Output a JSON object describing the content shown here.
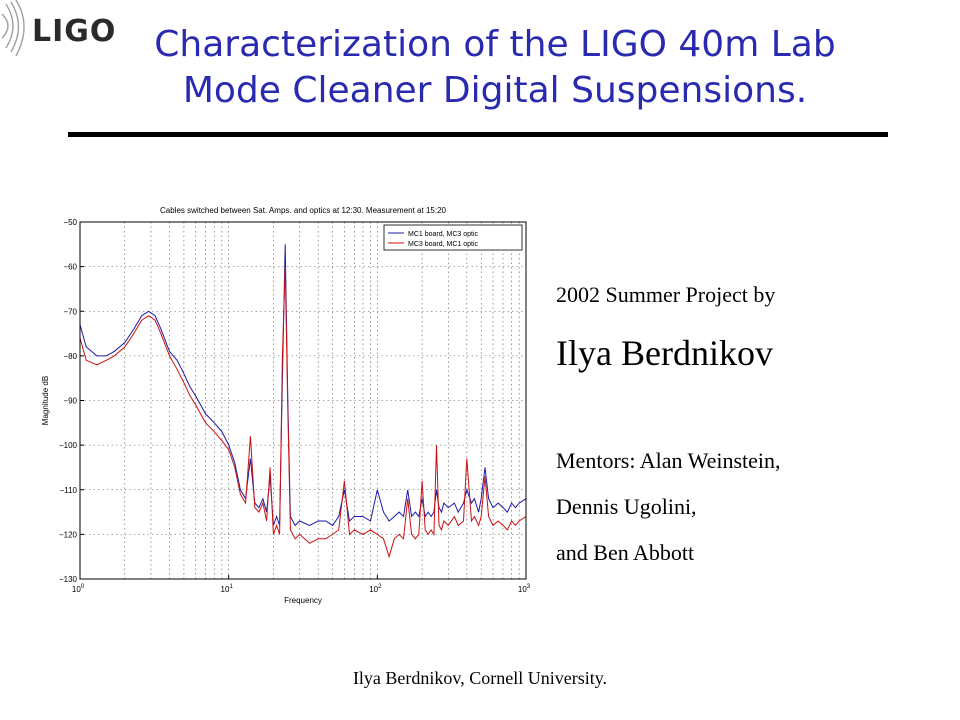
{
  "slide": {
    "logo_text": "LIGO",
    "title_line1": "Characterization of the LIGO 40m Lab",
    "title_line2": "Mode Cleaner Digital Suspensions.",
    "project_line": "2002 Summer Project by",
    "author": "Ilya Berdnikov",
    "mentors_line1": "Mentors: Alan Weinstein,",
    "mentors_line2": "Dennis Ugolini,",
    "mentors_line3": "and Ben Abbott",
    "footer": "Ilya Berdnikov, Cornell University."
  },
  "colors": {
    "title": "#2a2ab0",
    "series1": "#1a1aa8",
    "series2": "#cc1111"
  },
  "chart_data": {
    "type": "line",
    "title": "Cables switched between Sat. Amps. and optics at 12:30. Measurement at 15:20",
    "xlabel": "Frequency",
    "ylabel": "Magnitude dB",
    "xscale": "log",
    "xlim": [
      1,
      1000
    ],
    "ylim": [
      -130,
      -50
    ],
    "yticks": [
      -50,
      -60,
      -70,
      -80,
      -90,
      -100,
      -110,
      -120,
      -130
    ],
    "xticks": [
      {
        "base": "10",
        "exp": "0",
        "value": 1
      },
      {
        "base": "10",
        "exp": "1",
        "value": 10
      },
      {
        "base": "10",
        "exp": "2",
        "value": 100
      },
      {
        "base": "10",
        "exp": "3",
        "value": 1000
      }
    ],
    "grid": true,
    "legend_position": "top-right",
    "series": [
      {
        "name": "MC1 board, MC3 optic",
        "color": "#1a1aa8",
        "x": [
          1,
          1.1,
          1.3,
          1.5,
          1.7,
          2,
          2.3,
          2.6,
          2.9,
          3.2,
          3.5,
          4,
          4.5,
          5,
          5.5,
          6,
          7,
          8,
          9,
          10,
          11,
          12,
          13,
          14,
          15,
          16,
          17,
          18,
          19,
          20,
          21,
          22,
          23,
          24,
          25,
          26,
          27,
          28,
          30,
          35,
          40,
          45,
          50,
          55,
          60,
          65,
          70,
          80,
          90,
          100,
          110,
          120,
          130,
          140,
          150,
          160,
          170,
          180,
          190,
          200,
          210,
          220,
          230,
          240,
          250,
          260,
          270,
          280,
          300,
          330,
          350,
          380,
          400,
          430,
          450,
          480,
          500,
          530,
          560,
          600,
          650,
          700,
          750,
          800,
          850,
          900,
          1000
        ],
        "y": [
          -73,
          -78,
          -80,
          -80,
          -79,
          -77,
          -74,
          -71,
          -70,
          -71,
          -74,
          -79,
          -81,
          -84,
          -87,
          -89,
          -93,
          -95,
          -97,
          -100,
          -104,
          -110,
          -112,
          -103,
          -113,
          -114,
          -112,
          -115,
          -107,
          -118,
          -116,
          -118,
          -85,
          -55,
          -90,
          -116,
          -117,
          -118,
          -117,
          -118,
          -117,
          -117,
          -118,
          -116,
          -110,
          -117,
          -116,
          -116,
          -117,
          -110,
          -115,
          -117,
          -116,
          -115,
          -116,
          -110,
          -116,
          -115,
          -116,
          -112,
          -116,
          -115,
          -116,
          -115,
          -110,
          -114,
          -115,
          -113,
          -114,
          -113,
          -115,
          -113,
          -110,
          -113,
          -112,
          -115,
          -112,
          -105,
          -112,
          -114,
          -113,
          -114,
          -115,
          -113,
          -114,
          -113,
          -112
        ]
      },
      {
        "name": "MC3 board, MC1 optic",
        "color": "#cc1111",
        "x": [
          1,
          1.1,
          1.3,
          1.5,
          1.7,
          2,
          2.3,
          2.6,
          2.9,
          3.2,
          3.5,
          4,
          4.5,
          5,
          5.5,
          6,
          7,
          8,
          9,
          10,
          11,
          12,
          13,
          14,
          15,
          16,
          17,
          18,
          19,
          20,
          21,
          22,
          23,
          24,
          25,
          26,
          27,
          28,
          30,
          35,
          40,
          45,
          50,
          55,
          60,
          65,
          70,
          80,
          90,
          100,
          110,
          120,
          130,
          140,
          150,
          160,
          170,
          180,
          190,
          200,
          210,
          220,
          230,
          240,
          250,
          260,
          270,
          280,
          300,
          330,
          350,
          380,
          400,
          430,
          450,
          480,
          500,
          530,
          560,
          600,
          650,
          700,
          750,
          800,
          850,
          900,
          1000
        ],
        "y": [
          -76,
          -81,
          -82,
          -81,
          -80,
          -78,
          -75,
          -72,
          -71,
          -72,
          -75,
          -80,
          -83,
          -86,
          -89,
          -91,
          -95,
          -97,
          -99,
          -101,
          -105,
          -111,
          -113,
          -98,
          -114,
          -115,
          -113,
          -117,
          -105,
          -120,
          -118,
          -120,
          -80,
          -60,
          -92,
          -119,
          -120,
          -121,
          -120,
          -122,
          -121,
          -121,
          -120,
          -119,
          -108,
          -120,
          -119,
          -120,
          -119,
          -120,
          -121,
          -125,
          -121,
          -120,
          -121,
          -112,
          -120,
          -121,
          -120,
          -108,
          -119,
          -120,
          -119,
          -120,
          -100,
          -118,
          -119,
          -117,
          -118,
          -116,
          -118,
          -117,
          -103,
          -117,
          -116,
          -118,
          -116,
          -107,
          -116,
          -118,
          -117,
          -118,
          -119,
          -117,
          -118,
          -117,
          -116
        ]
      }
    ]
  }
}
